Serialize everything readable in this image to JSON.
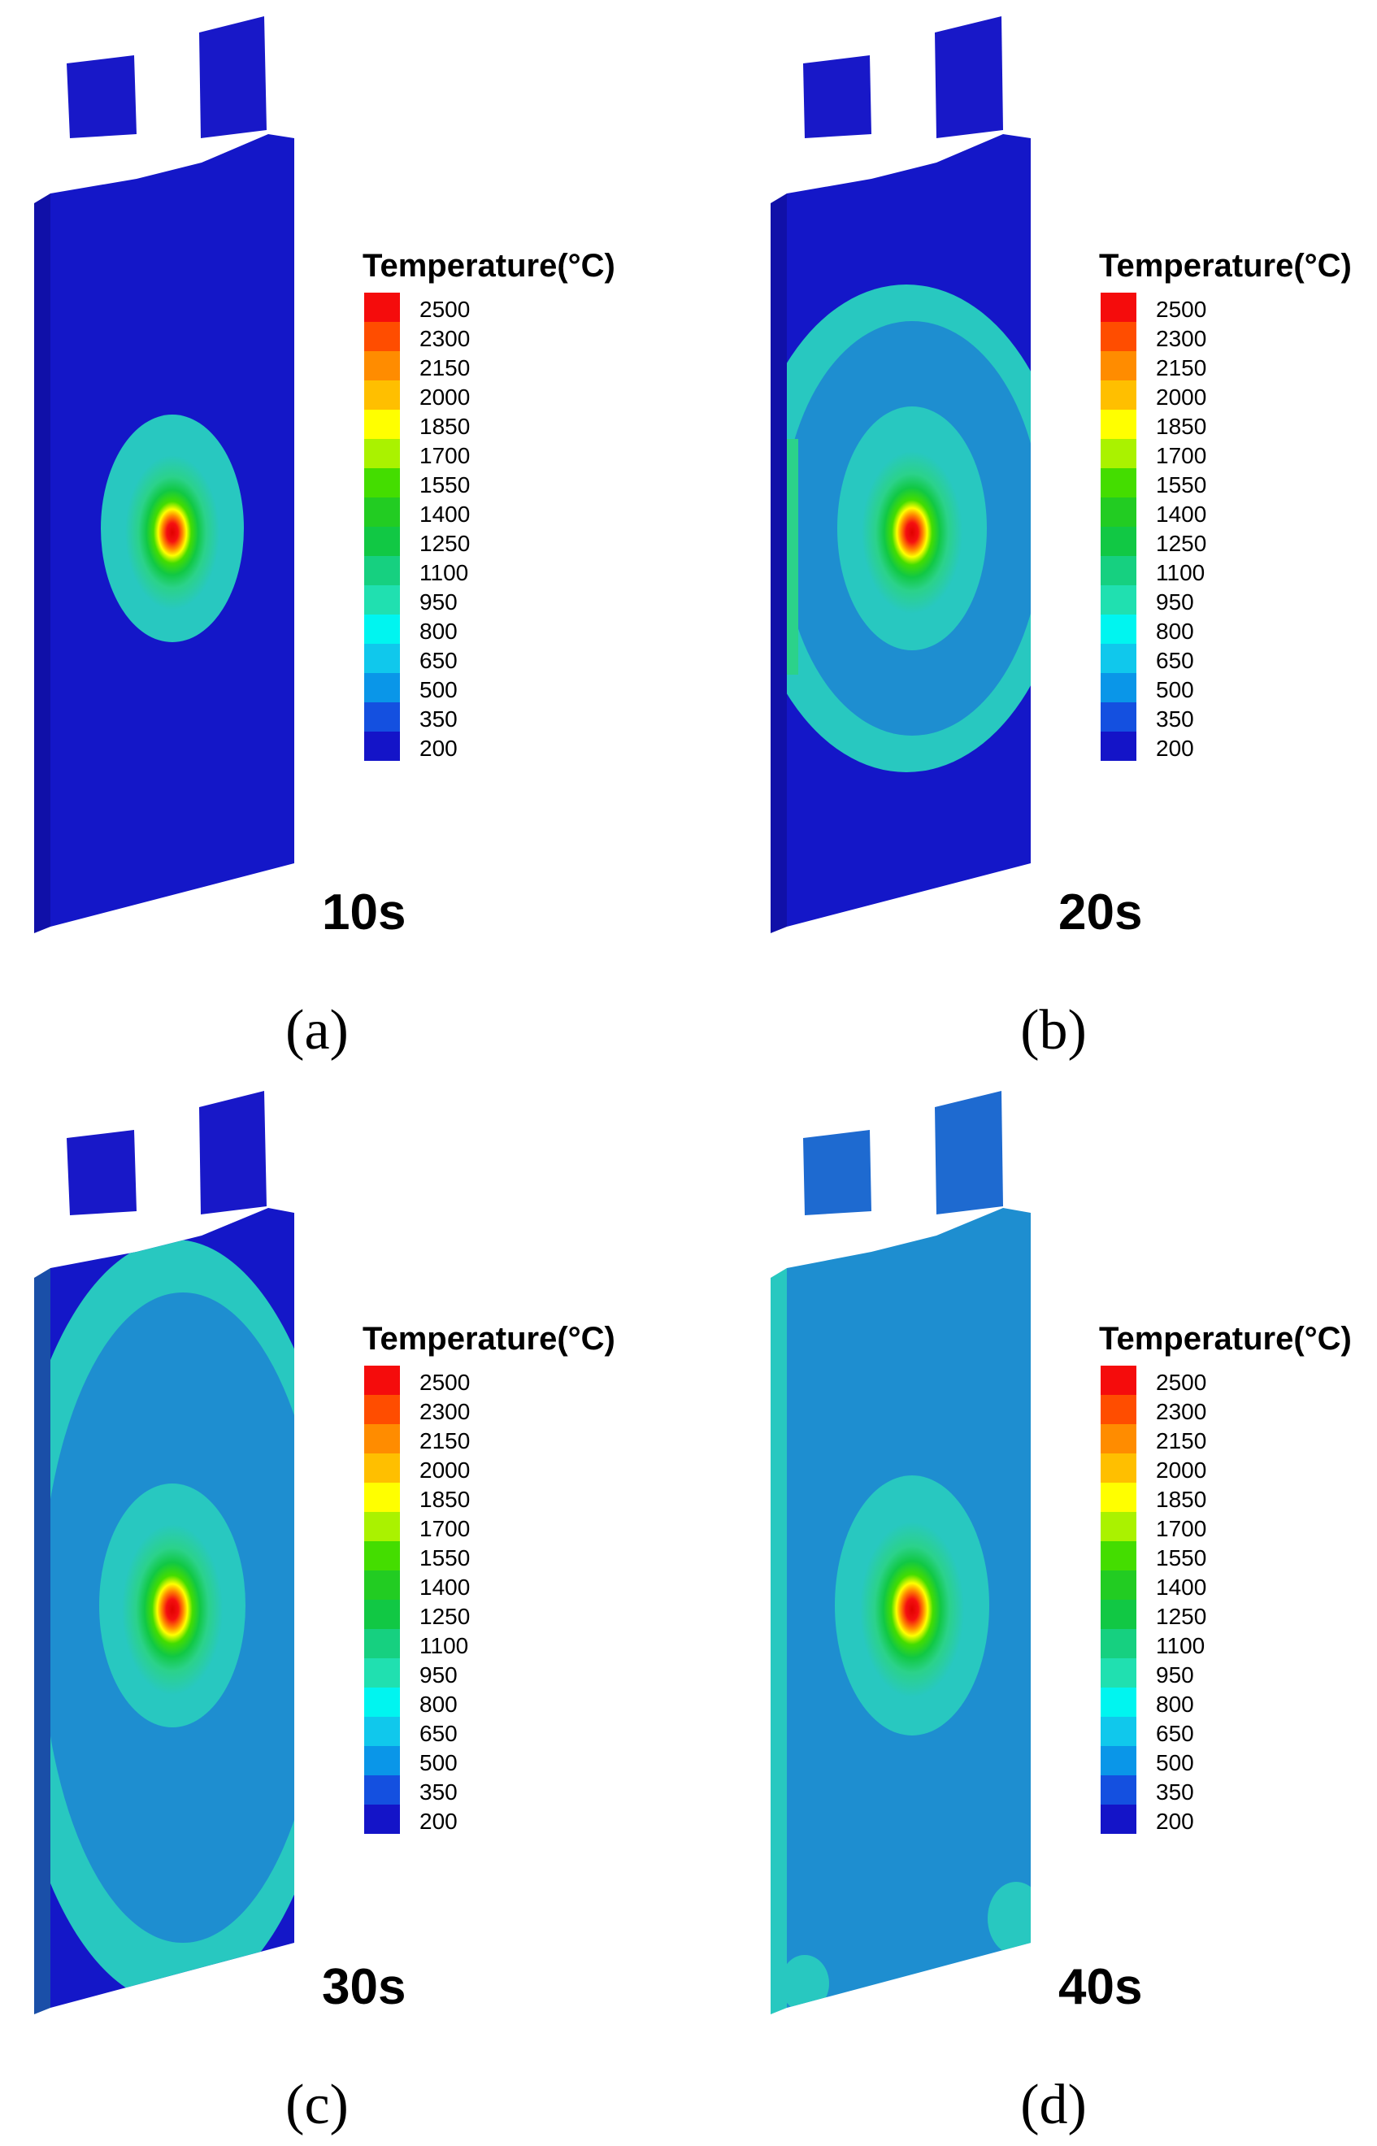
{
  "colorbar": {
    "title": "Temperature(°C)",
    "levels": [
      "2500",
      "2300",
      "2150",
      "2000",
      "1850",
      "1700",
      "1550",
      "1400",
      "1250",
      "1100",
      "950",
      "800",
      "650",
      "500",
      "350",
      "200"
    ],
    "colors": [
      "#f50c0c",
      "#ff4d00",
      "#ff8c00",
      "#ffbf00",
      "#ffff00",
      "#aaf200",
      "#44dd00",
      "#22cc22",
      "#11c844",
      "#16d080",
      "#20e0b0",
      "#00f5f0",
      "#10c8ec",
      "#0a96e8",
      "#1450e0",
      "#1414c8"
    ]
  },
  "base_colors": {
    "cold": "#1417c8",
    "mid": "#1e8ed0",
    "ring": "#28c8c0",
    "warm": "#2bd28a"
  },
  "panels": [
    {
      "id": "a",
      "time": "10s",
      "letter": "(a)"
    },
    {
      "id": "b",
      "time": "20s",
      "letter": "(b)"
    },
    {
      "id": "c",
      "time": "30s",
      "letter": "(c)"
    },
    {
      "id": "d",
      "time": "40s",
      "letter": "(d)"
    }
  ]
}
